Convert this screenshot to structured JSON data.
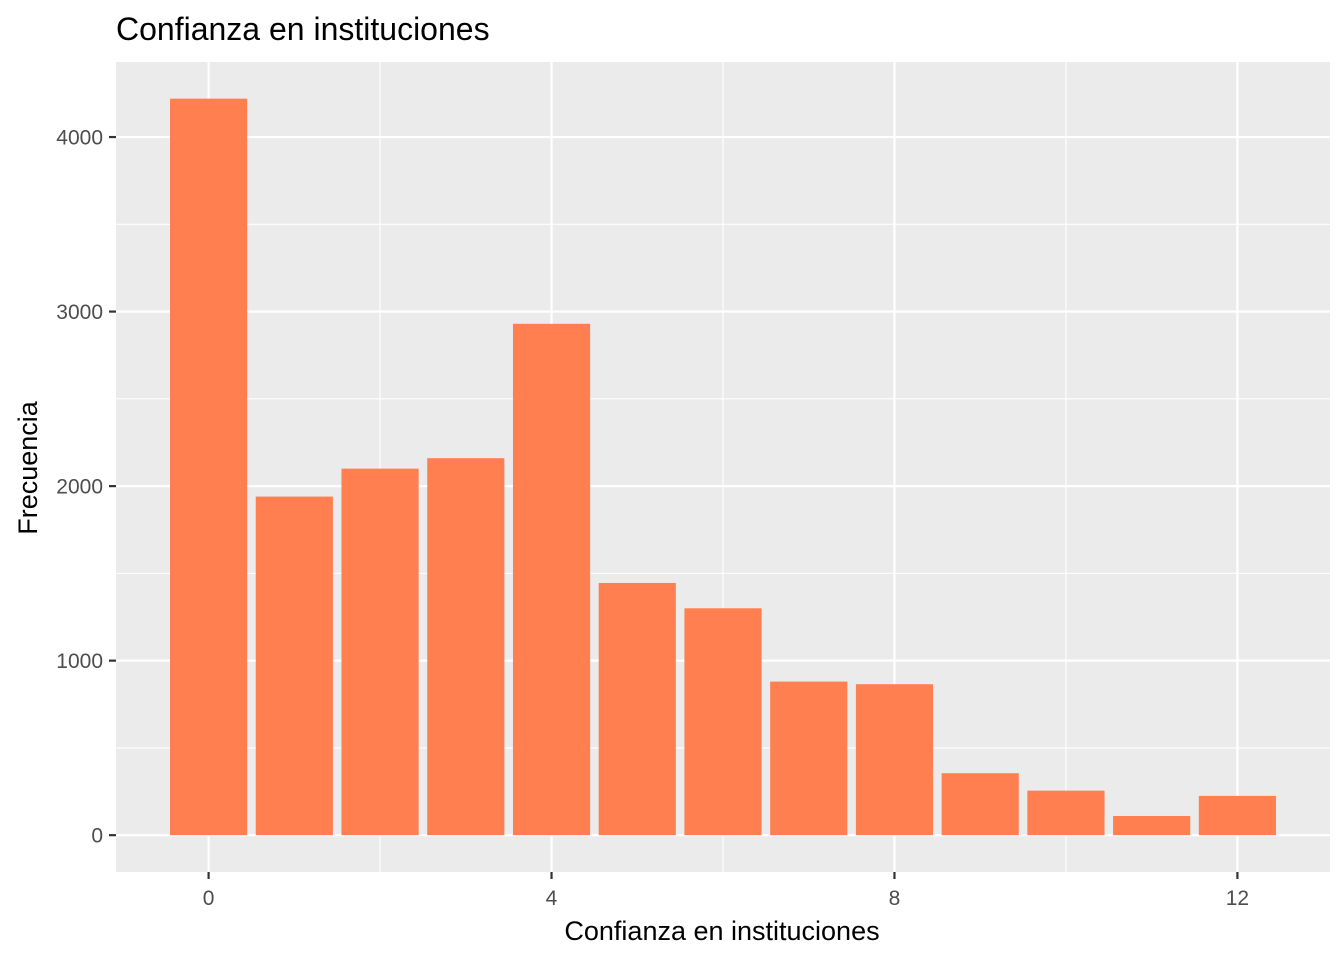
{
  "chart_data": {
    "type": "bar",
    "title": "Confianza en instituciones",
    "xlabel": "Confianza en instituciones",
    "ylabel": "Frecuencia",
    "x": [
      0,
      1,
      2,
      3,
      4,
      5,
      6,
      7,
      8,
      9,
      10,
      11,
      12
    ],
    "values": [
      4220,
      1940,
      2100,
      2160,
      2930,
      1445,
      1300,
      880,
      865,
      355,
      255,
      110,
      225
    ],
    "xlim": [
      -1.08,
      13.08
    ],
    "ylim": [
      -211,
      4430
    ],
    "x_ticks": [
      0,
      4,
      8,
      12
    ],
    "y_ticks": [
      0,
      1000,
      2000,
      3000,
      4000
    ],
    "x_tick_labels": [
      "0",
      "4",
      "8",
      "12"
    ],
    "y_tick_labels": [
      "0",
      "1000",
      "2000",
      "3000",
      "4000"
    ],
    "grid": true,
    "bar_color": "#FF7F50",
    "panel_color": "#EBEBEB",
    "grid_color": "#FFFFFF",
    "tick_color": "#333333",
    "tick_label_color": "#4D4D4D"
  }
}
